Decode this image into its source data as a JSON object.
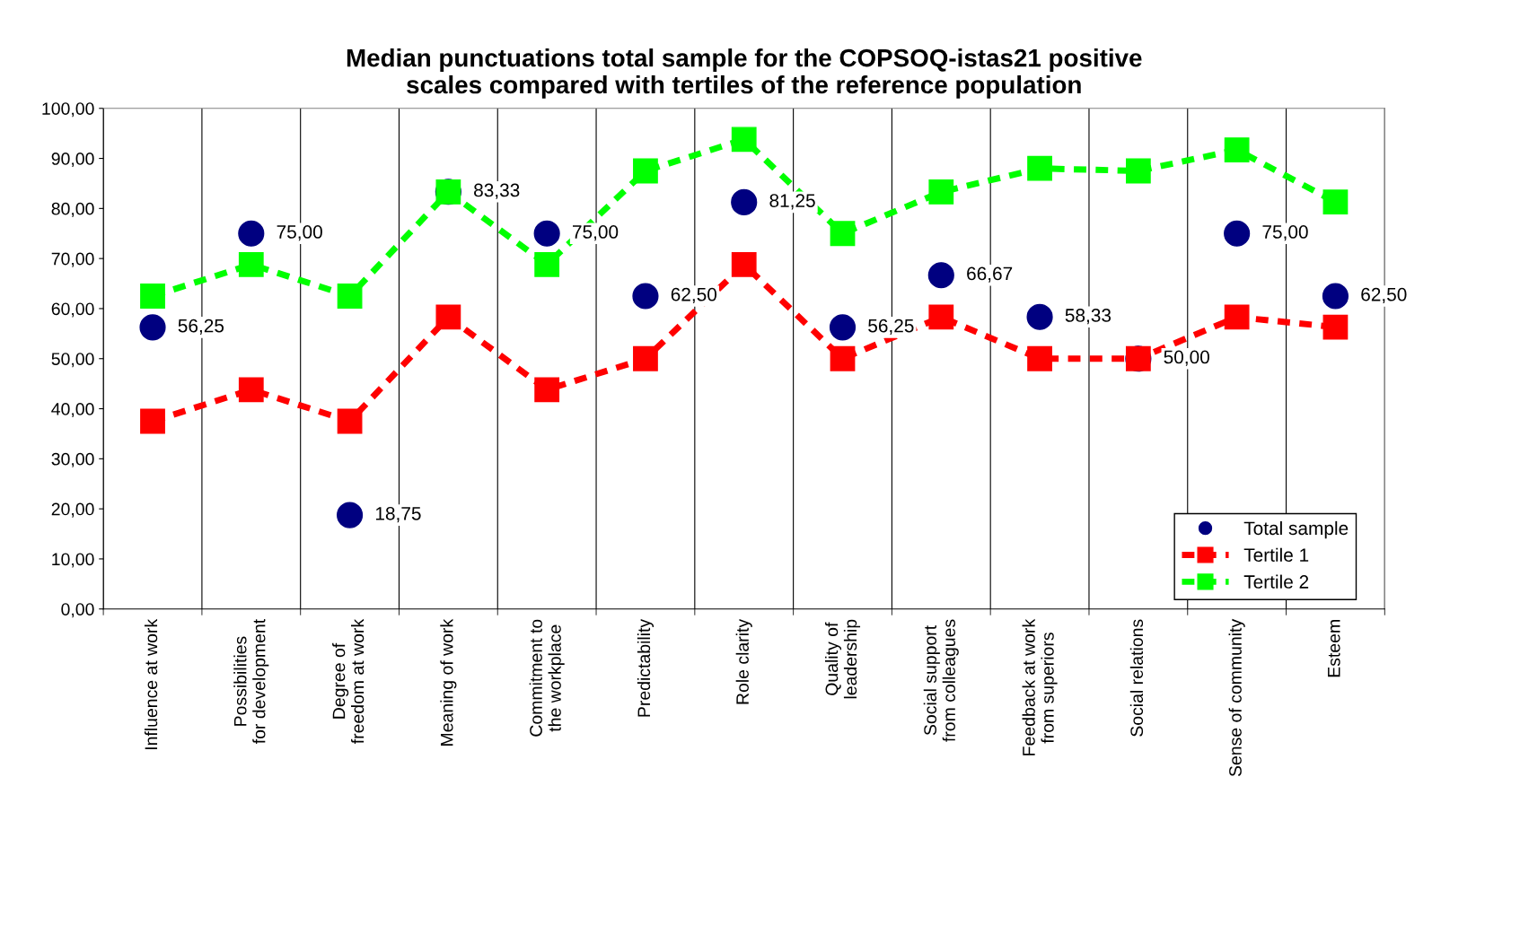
{
  "chart_data": {
    "type": "line",
    "title": "Median punctuations total sample for the COPSOQ-istas21 positive\nscales compared with tertiles of the reference population",
    "categories": [
      "Influence at work",
      "Possibilities for development",
      "Degree of freedom at work",
      "Meaning of work",
      "Commitment to the workplace",
      "Predictability",
      "Role clarity",
      "Quality of leadership",
      "Social support from colleagues",
      "Feedback at work from superiors",
      "Social relations",
      "Sense of community",
      "Esteem"
    ],
    "series": [
      {
        "name": "Total sample",
        "type": "scatter",
        "color": "#000080",
        "marker": "circle",
        "values": [
          56.25,
          75,
          18.75,
          83.33,
          75,
          62.5,
          81.25,
          56.25,
          66.67,
          58.33,
          50,
          75,
          62.5
        ],
        "value_labels": [
          "56,25",
          "75,00",
          "18,75",
          "83,33",
          "75,00",
          "62,50",
          "81,25",
          "56,25",
          "66,67",
          "58,33",
          "50,00",
          "75,00",
          "62,50"
        ]
      },
      {
        "name": "Tertile 1",
        "color": "#ff0000",
        "marker": "square",
        "line_style": "dashed",
        "values": [
          37.5,
          43.8,
          37.5,
          58.3,
          43.8,
          50,
          68.8,
          50,
          58.3,
          50,
          50,
          58.3,
          56.3
        ]
      },
      {
        "name": "Tertile 2",
        "color": "#00ff00",
        "marker": "square",
        "line_style": "dashed",
        "values": [
          62.5,
          68.8,
          62.5,
          83.3,
          68.8,
          87.5,
          93.8,
          75,
          83.3,
          88,
          87.5,
          91.7,
          81.3
        ]
      }
    ],
    "ylim": [
      0,
      100
    ],
    "yticks": [
      {
        "value": 0,
        "label": "0,00"
      },
      {
        "value": 10,
        "label": "10,00"
      },
      {
        "value": 20,
        "label": "20,00"
      },
      {
        "value": 30,
        "label": "30,00"
      },
      {
        "value": 40,
        "label": "40,00"
      },
      {
        "value": 50,
        "label": "50,00"
      },
      {
        "value": 60,
        "label": "60,00"
      },
      {
        "value": 70,
        "label": "70,00"
      },
      {
        "value": 80,
        "label": "80,00"
      },
      {
        "value": 90,
        "label": "90,00"
      },
      {
        "value": 100,
        "label": "100,00"
      }
    ],
    "grid": "x",
    "legend": "bottom right"
  }
}
